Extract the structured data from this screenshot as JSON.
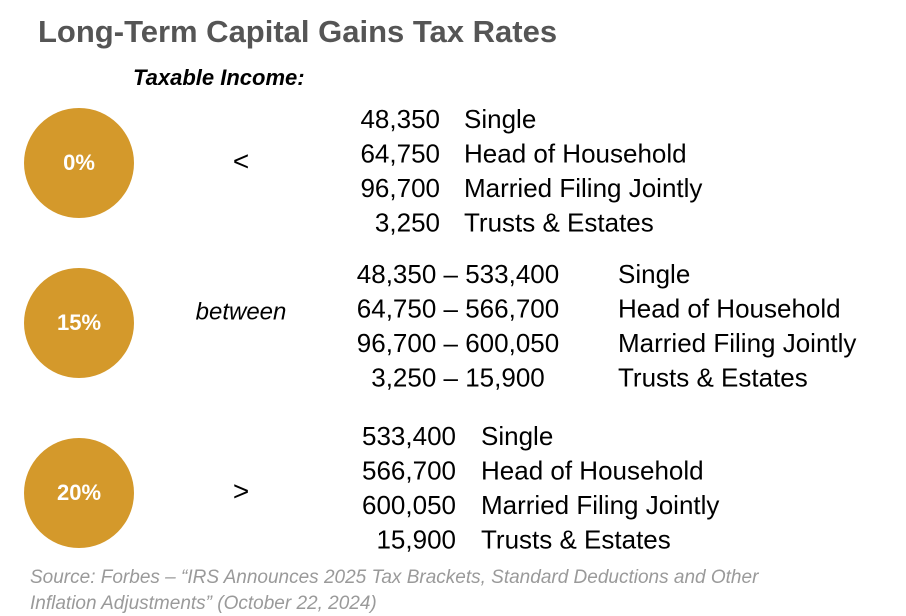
{
  "header": {
    "title": "Long-Term Capital Gains Tax Rates",
    "subtitle": "Taxable Income:"
  },
  "tiers": [
    {
      "rate": "0%",
      "operator": "<",
      "rows": [
        {
          "amount": "48,350",
          "filer": "Single"
        },
        {
          "amount": "64,750",
          "filer": "Head of Household"
        },
        {
          "amount": "96,700",
          "filer": "Married Filing Jointly"
        },
        {
          "amount": "3,250",
          "filer": "Trusts & Estates"
        }
      ]
    },
    {
      "rate": "15%",
      "operator": "between",
      "rows": [
        {
          "amount": "48,350 – 533,400",
          "filer": "Single"
        },
        {
          "amount": "64,750 – 566,700",
          "filer": "Head of Household"
        },
        {
          "amount": "96,700 – 600,050",
          "filer": "Married Filing Jointly"
        },
        {
          "amount": "3,250 – 15,900",
          "filer": "Trusts & Estates"
        }
      ]
    },
    {
      "rate": "20%",
      "operator": ">",
      "rows": [
        {
          "amount": "533,400",
          "filer": "Single"
        },
        {
          "amount": "566,700",
          "filer": "Head of Household"
        },
        {
          "amount": "600,050",
          "filer": "Married Filing Jointly"
        },
        {
          "amount": "15,900",
          "filer": "Trusts & Estates"
        }
      ]
    }
  ],
  "source": [
    "Source: Forbes – “IRS Announces 2025 Tax Brackets, Standard Deductions and Other",
    "Inflation Adjustments” (October 22, 2024)"
  ]
}
